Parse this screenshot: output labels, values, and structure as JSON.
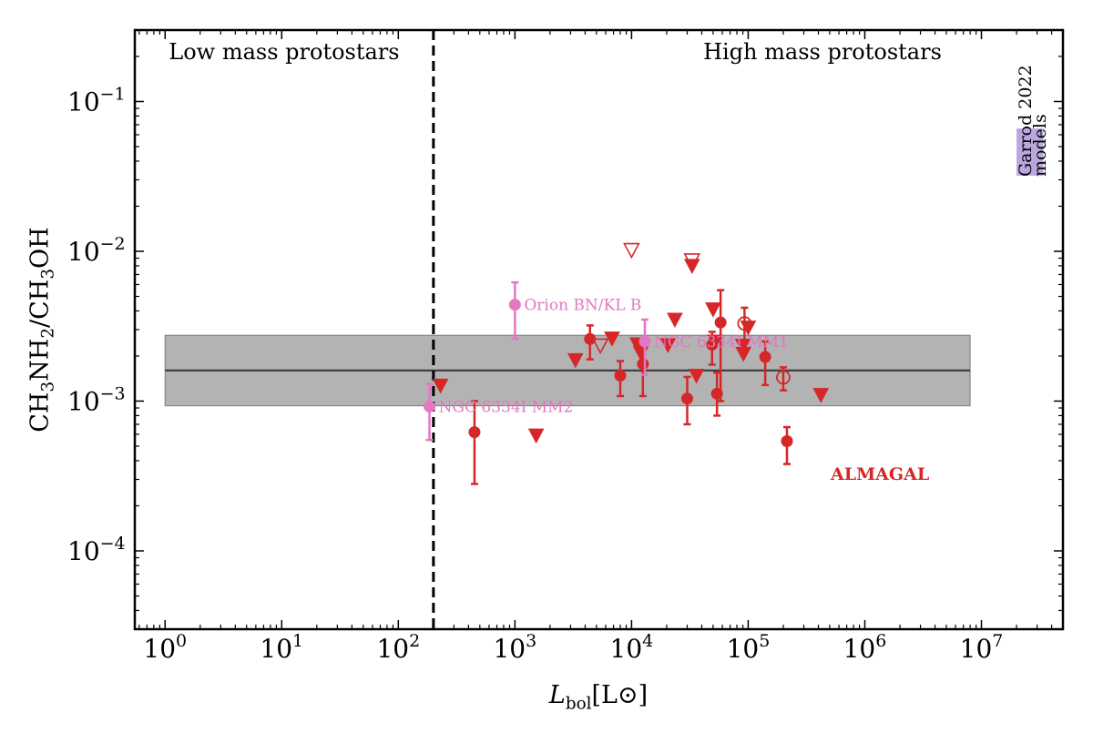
{
  "chart_data": {
    "type": "scatter",
    "xscale": "log",
    "yscale": "log",
    "xlim": [
      0.55,
      50000000.0
    ],
    "ylim": [
      3e-05,
      0.3
    ],
    "xlabel": {
      "main": "L",
      "sub": "bol",
      "unit": "[L⊙]"
    },
    "ylabel": {
      "part1": "CH",
      "sub1": "3",
      "part2": "NH",
      "sub2": "2",
      "part3": "/CH",
      "sub3": "3",
      "part4": "OH"
    },
    "x_ticks": [
      {
        "value": 1,
        "base": "10",
        "exp": "0"
      },
      {
        "value": 10,
        "base": "10",
        "exp": "1"
      },
      {
        "value": 100,
        "base": "10",
        "exp": "2"
      },
      {
        "value": 1000,
        "base": "10",
        "exp": "3"
      },
      {
        "value": 10000,
        "base": "10",
        "exp": "4"
      },
      {
        "value": 100000,
        "base": "10",
        "exp": "5"
      },
      {
        "value": 1000000,
        "base": "10",
        "exp": "6"
      },
      {
        "value": 10000000,
        "base": "10",
        "exp": "7"
      }
    ],
    "y_ticks": [
      {
        "value": 0.0001,
        "base": "10",
        "exp": "−4"
      },
      {
        "value": 0.001,
        "base": "10",
        "exp": "−3"
      },
      {
        "value": 0.01,
        "base": "10",
        "exp": "−2"
      },
      {
        "value": 0.1,
        "base": "10",
        "exp": "−1"
      }
    ],
    "divider": {
      "x": 200,
      "left_label": "Low mass protostars",
      "right_label": "High mass protostars"
    },
    "band": {
      "x_range": [
        1,
        8000000.0
      ],
      "y_low": 0.00093,
      "y_high": 0.00275,
      "median": 0.0016
    },
    "model_box": {
      "x_range": [
        20000000.0,
        34000000.0
      ],
      "y_range": [
        0.032,
        0.066
      ],
      "line1": "Garrod 2022",
      "line2": "models"
    },
    "detections": [
      {
        "x": 450,
        "y": 0.00062,
        "ylo": 0.00028,
        "yhi": 0.001
      },
      {
        "x": 4400,
        "y": 0.0026,
        "ylo": 0.0019,
        "yhi": 0.0032
      },
      {
        "x": 8000,
        "y": 0.00148,
        "ylo": 0.00108,
        "yhi": 0.00185
      },
      {
        "x": 12500,
        "y": 0.00177,
        "ylo": 0.00108,
        "yhi": 0.00225
      },
      {
        "x": 30000,
        "y": 0.00104,
        "ylo": 0.0007,
        "yhi": 0.00145
      },
      {
        "x": 49000,
        "y": 0.00238,
        "ylo": 0.00175,
        "yhi": 0.0029
      },
      {
        "x": 54000,
        "y": 0.00112,
        "ylo": 0.0008,
        "yhi": 0.00155
      },
      {
        "x": 58000,
        "y": 0.00335,
        "ylo": 0.001,
        "yhi": 0.0055
      },
      {
        "x": 140000,
        "y": 0.00197,
        "ylo": 0.00128,
        "yhi": 0.0025
      },
      {
        "x": 215000,
        "y": 0.00054,
        "ylo": 0.00038,
        "yhi": 0.00067
      }
    ],
    "open_detections": [
      {
        "x": 93000,
        "y": 0.0033,
        "ylo": 0.0025,
        "yhi": 0.0042
      },
      {
        "x": 200000,
        "y": 0.00144,
        "ylo": 0.00118,
        "yhi": 0.00168
      }
    ],
    "upper_limits": [
      {
        "x": 230,
        "y": 0.00127
      },
      {
        "x": 1520,
        "y": 0.00059
      },
      {
        "x": 3300,
        "y": 0.00188
      },
      {
        "x": 6800,
        "y": 0.00262
      },
      {
        "x": 11200,
        "y": 0.0024
      },
      {
        "x": 12000,
        "y": 0.0021
      },
      {
        "x": 20500,
        "y": 0.00237
      },
      {
        "x": 23500,
        "y": 0.0035
      },
      {
        "x": 33000,
        "y": 0.008
      },
      {
        "x": 36000,
        "y": 0.00148
      },
      {
        "x": 50000,
        "y": 0.0041
      },
      {
        "x": 52000,
        "y": 0.0025
      },
      {
        "x": 90000,
        "y": 0.00235
      },
      {
        "x": 91000,
        "y": 0.00207
      },
      {
        "x": 100000,
        "y": 0.0031
      },
      {
        "x": 420000,
        "y": 0.0011
      }
    ],
    "open_upper_limits": [
      {
        "x": 5400,
        "y": 0.00235
      },
      {
        "x": 10000,
        "y": 0.0102
      },
      {
        "x": 33000,
        "y": 0.0087
      }
    ],
    "reference_sources": [
      {
        "name": "Orion BN/KL B",
        "x": 1000,
        "y": 0.0044,
        "ylo": 0.0026,
        "yhi": 0.0062
      },
      {
        "name": "NGC 6334I MM1",
        "x": 13000,
        "y": 0.0025,
        "ylo": 0.0015,
        "yhi": 0.0035
      },
      {
        "name": "NGC 6334I MM2",
        "x": 185,
        "y": 0.00092,
        "ylo": 0.00055,
        "yhi": 0.0013
      }
    ],
    "series_label": "ALMAGAL",
    "colors": {
      "almagal": "#d62728",
      "reference": "#e377c2",
      "band_fill": "#b3b3b3",
      "band_line": "#404040",
      "model_fill": "#b39ddb"
    }
  }
}
